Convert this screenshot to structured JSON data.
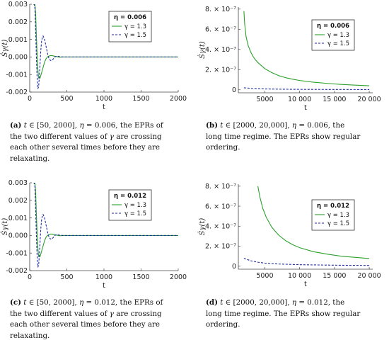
{
  "chart_data": [
    {
      "id": "a",
      "type": "line",
      "xlabel": "t",
      "ylabel": "Ṡγ(t)",
      "xlim": [
        0,
        2000
      ],
      "ylim": [
        -0.002,
        0.003
      ],
      "xticks": [
        0,
        500,
        1000,
        1500,
        2000
      ],
      "xtick_labels": [
        "0",
        "500",
        "1000",
        "1500",
        "2000"
      ],
      "yticks": [
        -0.002,
        -0.001,
        0.0,
        0.001,
        0.002,
        0.003
      ],
      "ytick_labels": [
        "-0.002",
        "-0.001",
        "0.000",
        "0.001",
        "0.002",
        "0.003"
      ],
      "legend": {
        "title": "η = 0.006",
        "placement": "top-right"
      },
      "series": [
        {
          "name": "γ = 1.3",
          "color": "#2ca02c",
          "dash": "solid",
          "x": [
            50,
            60,
            70,
            80,
            90,
            100,
            110,
            120,
            140,
            160,
            180,
            200,
            220,
            240,
            260,
            280,
            300,
            320,
            340,
            360,
            380,
            400,
            420,
            440,
            460,
            480,
            500,
            550,
            600,
            700,
            800,
            1000,
            1500,
            2000
          ],
          "y": [
            0.003,
            0.003,
            0.003,
            0.0025,
            0.0012,
            0.0001,
            -0.0007,
            -0.0012,
            -0.0012,
            -0.0009,
            -0.0006,
            -0.0003,
            -0.0001,
            0.0,
            5e-05,
            8e-05,
            8e-05,
            6e-05,
            4e-05,
            2e-05,
            0.0,
            -1e-05,
            -1e-05,
            0.0,
            0.0,
            0.0,
            0.0,
            0.0,
            0.0,
            0.0,
            0.0,
            0.0,
            0.0,
            0.0
          ]
        },
        {
          "name": "γ = 1.5",
          "color": "#1f2aa0",
          "dash": "dashed",
          "x": [
            50,
            60,
            70,
            80,
            90,
            100,
            110,
            120,
            130,
            140,
            150,
            160,
            170,
            180,
            200,
            220,
            240,
            260,
            280,
            300,
            320,
            340,
            360,
            380,
            400,
            450,
            500,
            600,
            700,
            800,
            1000,
            1500,
            2000
          ],
          "y": [
            0.003,
            0.003,
            0.0028,
            0.0015,
            0.0,
            -0.0012,
            -0.0018,
            -0.0017,
            -0.0011,
            -0.0003,
            0.0004,
            0.0009,
            0.0011,
            0.0012,
            0.001,
            0.0006,
            0.0002,
            -0.0001,
            -0.0002,
            -0.0002,
            -0.0001,
            0.0,
            5e-05,
            4e-05,
            2e-05,
            0.0,
            0.0,
            0.0,
            0.0,
            0.0,
            0.0,
            0.0,
            0.0
          ]
        }
      ]
    },
    {
      "id": "b",
      "type": "line",
      "xlabel": "t",
      "ylabel": "Ṡγ(t)",
      "xlim": [
        1200,
        20500
      ],
      "ylim": [
        -3e-08,
        8.2e-07
      ],
      "xticks": [
        5000,
        10000,
        15000,
        20000
      ],
      "xtick_labels": [
        "5000",
        "10 000",
        "15 000",
        "20 000"
      ],
      "yticks": [
        0,
        2e-07,
        4e-07,
        6e-07,
        8e-07
      ],
      "ytick_labels": [
        "0",
        "2. × 10⁻⁷",
        "4. × 10⁻⁷",
        "6. × 10⁻⁷",
        "8. × 10⁻⁷"
      ],
      "legend": {
        "title": "η = 0.006",
        "placement": "top-right"
      },
      "series": [
        {
          "name": "γ = 1.3",
          "color": "#2ca02c",
          "dash": "solid",
          "x": [
            2000,
            2100,
            2300,
            2600,
            3000,
            3500,
            4000,
            5000,
            6000,
            7000,
            8000,
            9000,
            10000,
            12000,
            14000,
            16000,
            18000,
            20000
          ],
          "y": [
            7.8e-07,
            6.6e-07,
            5.3e-07,
            4.4e-07,
            3.7e-07,
            3.1e-07,
            2.7e-07,
            2.1e-07,
            1.7e-07,
            1.4e-07,
            1.2e-07,
            1.05e-07,
            9.2e-08,
            7.5e-08,
            6.3e-08,
            5.3e-08,
            4.6e-08,
            4e-08
          ]
        },
        {
          "name": "γ = 1.5",
          "color": "#1f2aa0",
          "dash": "dashed",
          "x": [
            2000,
            2500,
            3000,
            4000,
            5000,
            7000,
            10000,
            15000,
            20000
          ],
          "y": [
            2e-08,
            1.7e-08,
            1.4e-08,
            1.1e-08,
            8.5e-09,
            6e-09,
            4.2e-09,
            2.9e-09,
            2.2e-09
          ]
        }
      ]
    },
    {
      "id": "c",
      "type": "line",
      "xlabel": "t",
      "ylabel": "Ṡγ(t)",
      "xlim": [
        0,
        2000
      ],
      "ylim": [
        -0.002,
        0.003
      ],
      "xticks": [
        0,
        500,
        1000,
        1500,
        2000
      ],
      "xtick_labels": [
        "0",
        "500",
        "1000",
        "1500",
        "2000"
      ],
      "yticks": [
        -0.002,
        -0.001,
        0.0,
        0.001,
        0.002,
        0.003
      ],
      "ytick_labels": [
        "-0.002",
        "-0.001",
        "0.000",
        "0.001",
        "0.002",
        "0.003"
      ],
      "legend": {
        "title": "η = 0.012",
        "placement": "top-right"
      },
      "series": [
        {
          "name": "γ = 1.3",
          "color": "#2ca02c",
          "dash": "solid",
          "x": [
            50,
            60,
            70,
            80,
            90,
            100,
            110,
            120,
            140,
            160,
            180,
            200,
            220,
            240,
            260,
            280,
            300,
            320,
            340,
            360,
            380,
            400,
            420,
            440,
            460,
            480,
            500,
            550,
            600,
            700,
            800,
            1000,
            1500,
            2000
          ],
          "y": [
            0.003,
            0.003,
            0.003,
            0.0025,
            0.0012,
            0.0001,
            -0.0007,
            -0.0012,
            -0.0012,
            -0.0009,
            -0.0006,
            -0.0003,
            -0.0001,
            0.0,
            5e-05,
            8e-05,
            8e-05,
            6e-05,
            4e-05,
            2e-05,
            0.0,
            -1e-05,
            -1e-05,
            0.0,
            0.0,
            0.0,
            0.0,
            0.0,
            0.0,
            0.0,
            0.0,
            0.0,
            0.0,
            0.0
          ]
        },
        {
          "name": "γ = 1.5",
          "color": "#1f2aa0",
          "dash": "dashed",
          "x": [
            50,
            60,
            70,
            80,
            90,
            100,
            110,
            120,
            130,
            140,
            150,
            160,
            170,
            180,
            200,
            220,
            240,
            260,
            280,
            300,
            320,
            340,
            360,
            380,
            400,
            450,
            500,
            600,
            700,
            800,
            1000,
            1500,
            2000
          ],
          "y": [
            0.003,
            0.003,
            0.0028,
            0.0015,
            0.0,
            -0.0012,
            -0.0018,
            -0.0017,
            -0.0011,
            -0.0003,
            0.0004,
            0.0009,
            0.0011,
            0.0012,
            0.001,
            0.0006,
            0.0002,
            -0.0001,
            -0.0002,
            -0.0002,
            -0.0001,
            0.0,
            5e-05,
            4e-05,
            2e-05,
            0.0,
            0.0,
            0.0,
            0.0,
            0.0,
            0.0,
            0.0,
            0.0
          ]
        }
      ]
    },
    {
      "id": "d",
      "type": "line",
      "xlabel": "t",
      "ylabel": "Ṡγ(t)",
      "xlim": [
        1200,
        20500
      ],
      "ylim": [
        -3e-08,
        8.2e-07
      ],
      "xticks": [
        5000,
        10000,
        15000,
        20000
      ],
      "xtick_labels": [
        "5000",
        "10 000",
        "15 000",
        "20 000"
      ],
      "yticks": [
        0,
        2e-07,
        4e-07,
        6e-07,
        8e-07
      ],
      "ytick_labels": [
        "0",
        "2. × 10⁻⁷",
        "4. × 10⁻⁷",
        "6. × 10⁻⁷",
        "8. × 10⁻⁷"
      ],
      "legend": {
        "title": "η = 0.012",
        "placement": "top-right"
      },
      "series": [
        {
          "name": "γ = 1.3",
          "color": "#2ca02c",
          "dash": "solid",
          "x": [
            4000,
            4300,
            4700,
            5200,
            6000,
            7000,
            8000,
            9000,
            10000,
            12000,
            14000,
            16000,
            18000,
            20000
          ],
          "y": [
            8e-07,
            6.9e-07,
            5.8e-07,
            4.9e-07,
            3.9e-07,
            3.1e-07,
            2.55e-07,
            2.15e-07,
            1.85e-07,
            1.45e-07,
            1.2e-07,
            1e-07,
            8.8e-08,
            7.7e-08
          ]
        },
        {
          "name": "γ = 1.5",
          "color": "#1f2aa0",
          "dash": "dashed",
          "x": [
            2000,
            2500,
            3000,
            4000,
            5000,
            7000,
            10000,
            15000,
            20000
          ],
          "y": [
            8e-08,
            6.6e-08,
            5.4e-08,
            4e-08,
            3.1e-08,
            2.2e-08,
            1.5e-08,
            1e-08,
            7.5e-09
          ]
        }
      ]
    }
  ],
  "captions": {
    "a": {
      "label": "(a)",
      "line1_math_a": "t",
      "line1_rest": "∈ [50, 2000],",
      "line1_eta": "η",
      "line1_val": "= 0.006, the EPRs of",
      "line2_pre": "the two different values of",
      "line2_gamma": "γ",
      "line2_post": "are crossing",
      "line3": "each other several times before they are",
      "line4": "relaxating."
    },
    "b": {
      "label": "(b)",
      "line1_math_a": "t",
      "line1_rest": "∈ [2000, 20,000],",
      "line1_eta": "η",
      "line1_val": "= 0.006, the",
      "line2": "long time regime. The EPRs show regular",
      "line3": "ordering."
    },
    "c": {
      "label": "(c)",
      "line1_math_a": "t",
      "line1_rest": "∈ [50, 2000],",
      "line1_eta": "η",
      "line1_val": "= 0.012, the EPRs of",
      "line2_pre": "the two different values of",
      "line2_gamma": "γ",
      "line2_post": "are crossing",
      "line3": "each other several times before they are",
      "line4": "relaxating."
    },
    "d": {
      "label": "(d)",
      "line1_math_a": "t",
      "line1_rest": "∈ [2000, 20,000],",
      "line1_eta": "η",
      "line1_val": "= 0.012, the",
      "line2": "long time regime. The EPRs show regular",
      "line3": "ordering."
    }
  }
}
